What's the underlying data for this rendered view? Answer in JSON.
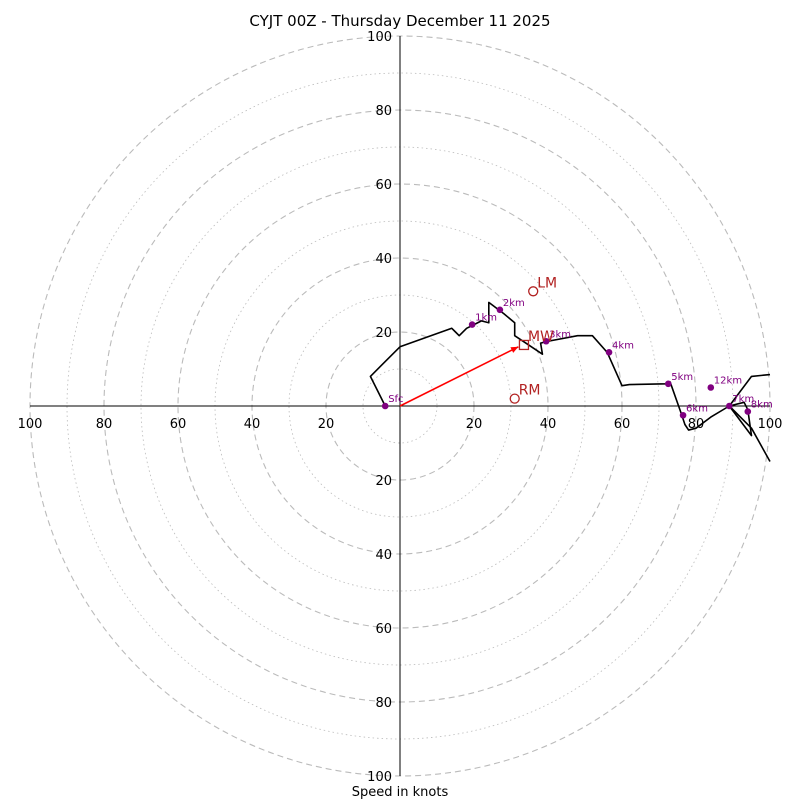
{
  "chart_data": {
    "type": "scatter",
    "subtype": "hodograph",
    "title": "CYJT 00Z - Thursday December 11 2025",
    "xlabel": "Speed in knots",
    "max_speed": 100,
    "ring_step_major": 20,
    "ring_step_minor": 10,
    "tick_values": [
      20,
      40,
      60,
      80,
      100
    ],
    "tick_labels": [
      "20",
      "40",
      "60",
      "80",
      "100"
    ],
    "trace": {
      "name": "wind profile",
      "color": "#000000",
      "points": [
        [
          -4,
          0
        ],
        [
          -8,
          8
        ],
        [
          -4,
          12
        ],
        [
          0,
          16
        ],
        [
          14,
          21
        ],
        [
          15,
          20
        ],
        [
          16,
          19
        ],
        [
          18,
          21
        ],
        [
          20,
          22
        ],
        [
          22,
          23
        ],
        [
          24,
          22.5
        ],
        [
          24,
          28
        ],
        [
          28,
          25
        ],
        [
          31,
          22.5
        ],
        [
          31,
          19
        ],
        [
          34,
          17
        ],
        [
          38.5,
          14
        ],
        [
          38,
          17
        ],
        [
          40,
          17.5
        ],
        [
          48,
          19
        ],
        [
          52,
          19
        ],
        [
          56,
          14.5
        ],
        [
          60,
          5.5
        ],
        [
          62,
          5.8
        ],
        [
          72,
          6
        ],
        [
          73,
          6.5
        ],
        [
          76,
          -2
        ],
        [
          77,
          -5
        ],
        [
          78,
          -6.5
        ],
        [
          80,
          -6
        ],
        [
          84,
          -3
        ],
        [
          89,
          0
        ],
        [
          93,
          1
        ],
        [
          94,
          -1
        ],
        [
          95,
          -8
        ],
        [
          89,
          0
        ],
        [
          95,
          8
        ],
        [
          100,
          8.5
        ]
      ],
      "tail": [
        [
          89,
          0
        ],
        [
          95,
          -6
        ],
        [
          100,
          -15
        ]
      ]
    },
    "height_markers": [
      {
        "label": "Sfc",
        "u": -4,
        "v": 0
      },
      {
        "label": "1km",
        "u": 19.5,
        "v": 22
      },
      {
        "label": "2km",
        "u": 27,
        "v": 26
      },
      {
        "label": "3km",
        "u": 39.5,
        "v": 17.5
      },
      {
        "label": "4km",
        "u": 56.5,
        "v": 14.5
      },
      {
        "label": "5km",
        "u": 72.5,
        "v": 6
      },
      {
        "label": "6km",
        "u": 76.5,
        "v": -2.5
      },
      {
        "label": "7km",
        "u": 89,
        "v": 0
      },
      {
        "label": "8km",
        "u": 94,
        "v": -1.5
      },
      {
        "label": "12km",
        "u": 84,
        "v": 5
      }
    ],
    "motion_markers": [
      {
        "label": "LM",
        "u": 36,
        "v": 31,
        "shape": "circle"
      },
      {
        "label": "RM",
        "u": 31,
        "v": 2,
        "shape": "circle"
      },
      {
        "label": "MW",
        "u": 33.5,
        "v": 16.5,
        "shape": "square"
      }
    ],
    "shear_vector": {
      "from": [
        0,
        0
      ],
      "to": [
        32,
        16
      ],
      "color": "#ff0000"
    },
    "colors": {
      "ring": "#bbbbbb",
      "height": "#800080",
      "motion": "#b22222",
      "axis": "#000000"
    }
  }
}
